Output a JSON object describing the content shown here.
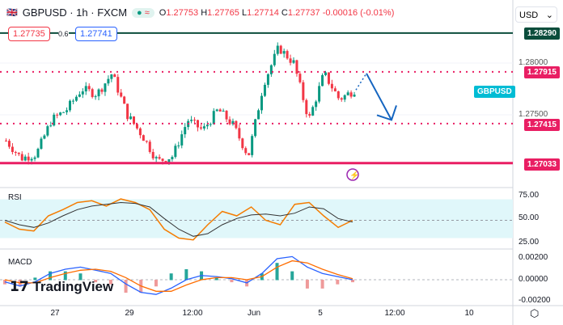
{
  "header": {
    "symbol": "GBPUSD",
    "interval": "1h",
    "exchange": "FXCM",
    "o": "1.27753",
    "h": "1.27765",
    "l": "1.27714",
    "c": "1.27737",
    "change": "-0.00016 (-0.01%)"
  },
  "order": {
    "sell": "1.27735",
    "spread": "0.6",
    "buy": "1.27741"
  },
  "currency": "USD",
  "symbol_tag": "GBPUSD",
  "logo": "TradingView",
  "colors": {
    "up": "#089981",
    "down": "#f23645",
    "dotted": "#e91e63",
    "support": "#e91e63",
    "resistance": "#0b4d3c",
    "arrow": "#1565c0",
    "rsi": "#f57c00",
    "macd": "#2962ff",
    "signal": "#ff6d00"
  },
  "chart_data": [
    {
      "type": "candlestick",
      "ylim": [
        1.2685,
        1.284
      ],
      "yticks": [
        "1.28000",
        "1.27500"
      ],
      "levels": [
        {
          "value": "1.28290",
          "style": "solid",
          "color": "#0b4d3c"
        },
        {
          "value": "1.27915",
          "style": "dotted",
          "color": "#e91e63"
        },
        {
          "value": "1.27415",
          "style": "dotted",
          "color": "#e91e63"
        },
        {
          "value": "1.27033",
          "style": "solid",
          "color": "#e91e63"
        }
      ],
      "xticks": [
        "27",
        "29",
        "12:00",
        "Jun",
        "5",
        "12:00",
        "10"
      ],
      "close_path": [
        1.2725,
        1.2708,
        1.2712,
        1.2745,
        1.2755,
        1.2775,
        1.277,
        1.279,
        1.275,
        1.273,
        1.2705,
        1.271,
        1.2745,
        1.2735,
        1.2755,
        1.274,
        1.271,
        1.278,
        1.2815,
        1.28,
        1.2745,
        1.279,
        1.2765,
        1.2774
      ],
      "forecast": [
        1.2774,
        1.279,
        1.2745
      ]
    },
    {
      "type": "line",
      "title": "RSI",
      "ylim": [
        15,
        85
      ],
      "yticks": [
        "75.00",
        "50.00",
        "25.00"
      ],
      "band": [
        30,
        70
      ],
      "rsi": [
        48,
        40,
        38,
        55,
        62,
        70,
        72,
        66,
        74,
        70,
        62,
        40,
        30,
        28,
        45,
        60,
        55,
        65,
        50,
        45,
        68,
        70,
        55,
        42,
        50
      ],
      "ma": [
        50,
        45,
        42,
        47,
        55,
        62,
        66,
        68,
        70,
        69,
        65,
        52,
        40,
        32,
        35,
        45,
        52,
        56,
        57,
        55,
        58,
        65,
        63,
        52,
        48
      ]
    },
    {
      "type": "line",
      "title": "MACD",
      "ylim": [
        -0.0027,
        0.0027
      ],
      "yticks": [
        "0.00200",
        "0.00000",
        "-0.00200"
      ],
      "macd": [
        -0.0002,
        -0.0006,
        -0.0002,
        0.0006,
        0.001,
        0.0012,
        0.0009,
        0.0006,
        -0.0004,
        -0.0012,
        -0.0014,
        -0.0008,
        0.0,
        0.0004,
        0.0003,
        0.0001,
        -0.0003,
        0.0006,
        0.002,
        0.0022,
        0.0012,
        0.0006,
        0.0003,
        0.0
      ],
      "signal": [
        0.0,
        -0.0003,
        -0.0003,
        0.0002,
        0.0006,
        0.0009,
        0.001,
        0.0008,
        0.0002,
        -0.0006,
        -0.0011,
        -0.0011,
        -0.0005,
        0.0,
        0.0002,
        0.0002,
        0.0,
        0.0003,
        0.0012,
        0.0018,
        0.0016,
        0.001,
        0.0005,
        0.0001
      ]
    }
  ]
}
